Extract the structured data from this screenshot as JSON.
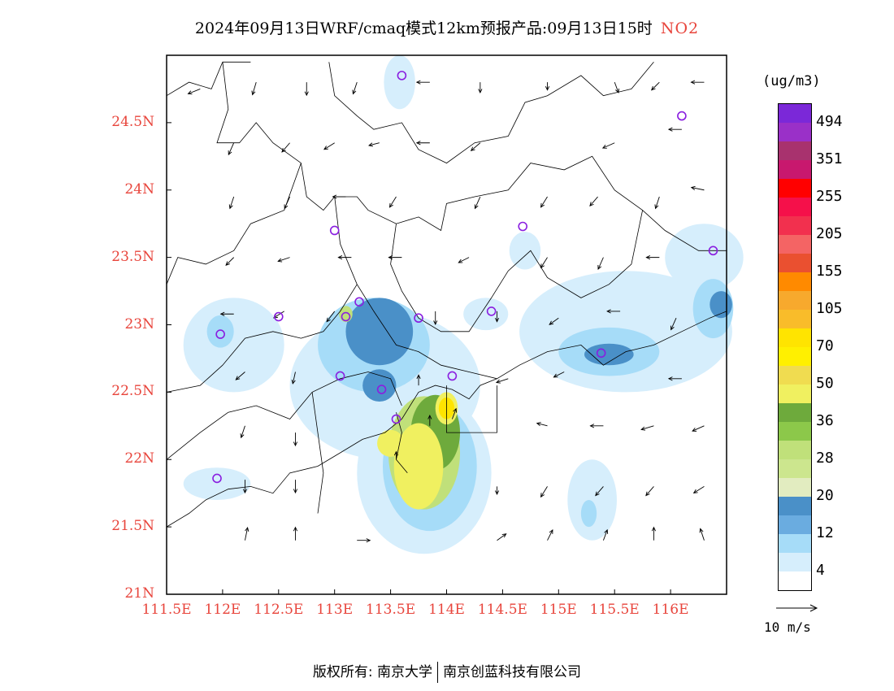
{
  "title": {
    "main": "2024年09月13日WRF/cmaq模式12km预报产品:09月13日15时",
    "species": "NO2",
    "species_color": "#e8453c"
  },
  "axes": {
    "lat_labels": [
      "24.5N",
      "24N",
      "23.5N",
      "23N",
      "22.5N",
      "22N",
      "21.5N",
      "21N"
    ],
    "lat_values": [
      24.5,
      24,
      23.5,
      23,
      22.5,
      22,
      21.5,
      21
    ],
    "lon_labels": [
      "111.5E",
      "112E",
      "112.5E",
      "113E",
      "113.5E",
      "114E",
      "114.5E",
      "115E",
      "115.5E",
      "116E"
    ],
    "lon_values": [
      111.5,
      112,
      112.5,
      113,
      113.5,
      114,
      114.5,
      115,
      115.5,
      116
    ],
    "lon_range": [
      111.5,
      116.5
    ],
    "lat_range": [
      21,
      25
    ],
    "label_color": "#e8453c"
  },
  "legend": {
    "unit": "(ug/m3)",
    "labels": [
      "494",
      "351",
      "255",
      "205",
      "155",
      "105",
      "70",
      "50",
      "36",
      "28",
      "20",
      "12",
      "4"
    ],
    "colors_top_to_bottom": [
      "#7b28d8",
      "#9a30c8",
      "#a8326e",
      "#c8186e",
      "#ff0000",
      "#f5104a",
      "#f2304e",
      "#f46464",
      "#ea5030",
      "#ff8a00",
      "#f7a92d",
      "#f9bc2a",
      "#ffe400",
      "#fff000",
      "#f0dc50",
      "#f0f060",
      "#6eaa3c",
      "#8cc84a",
      "#c0e07a",
      "#cce68e",
      "#e2ecc0",
      "#4a90c8",
      "#6aace0",
      "#a6dcf8",
      "#d6eefc",
      "#ffffff"
    ]
  },
  "wind_reference": {
    "label": "10 m/s"
  },
  "copyright": {
    "left": "版权所有: 南京大学",
    "right": "南京创蓝科技有限公司"
  },
  "stations": [
    {
      "lon": 113.6,
      "lat": 24.85
    },
    {
      "lon": 113.0,
      "lat": 23.7
    },
    {
      "lon": 114.68,
      "lat": 23.73
    },
    {
      "lon": 116.1,
      "lat": 24.55
    },
    {
      "lon": 116.38,
      "lat": 23.55
    },
    {
      "lon": 112.5,
      "lat": 23.06
    },
    {
      "lon": 111.98,
      "lat": 22.93
    },
    {
      "lon": 113.1,
      "lat": 23.06
    },
    {
      "lon": 113.22,
      "lat": 23.17
    },
    {
      "lon": 113.75,
      "lat": 23.05
    },
    {
      "lon": 114.4,
      "lat": 23.1
    },
    {
      "lon": 113.05,
      "lat": 22.62
    },
    {
      "lon": 113.42,
      "lat": 22.52
    },
    {
      "lon": 114.05,
      "lat": 22.62
    },
    {
      "lon": 113.55,
      "lat": 22.3
    },
    {
      "lon": 115.38,
      "lat": 22.79
    },
    {
      "lon": 111.95,
      "lat": 21.86
    }
  ],
  "concentration_fields": [
    {
      "level": "4",
      "color": "#d6eefc",
      "blobs": [
        {
          "lon": 113.45,
          "lat": 22.55,
          "rx": 0.85,
          "ry": 0.55
        },
        {
          "lon": 113.8,
          "lat": 21.9,
          "rx": 0.6,
          "ry": 0.6
        },
        {
          "lon": 112.1,
          "lat": 22.85,
          "rx": 0.45,
          "ry": 0.35
        },
        {
          "lon": 115.6,
          "lat": 22.95,
          "rx": 0.95,
          "ry": 0.45
        },
        {
          "lon": 116.3,
          "lat": 23.5,
          "rx": 0.35,
          "ry": 0.25
        },
        {
          "lon": 115.3,
          "lat": 21.7,
          "rx": 0.22,
          "ry": 0.3
        },
        {
          "lon": 113.58,
          "lat": 24.8,
          "rx": 0.14,
          "ry": 0.2
        },
        {
          "lon": 114.35,
          "lat": 23.08,
          "rx": 0.2,
          "ry": 0.12
        },
        {
          "lon": 114.7,
          "lat": 23.55,
          "rx": 0.14,
          "ry": 0.14
        },
        {
          "lon": 111.95,
          "lat": 21.82,
          "rx": 0.3,
          "ry": 0.12
        }
      ]
    },
    {
      "level": "12",
      "color": "#a6dcf8",
      "blobs": [
        {
          "lon": 113.35,
          "lat": 22.85,
          "rx": 0.5,
          "ry": 0.35
        },
        {
          "lon": 113.85,
          "lat": 21.95,
          "rx": 0.42,
          "ry": 0.48
        },
        {
          "lon": 115.45,
          "lat": 22.8,
          "rx": 0.45,
          "ry": 0.18
        },
        {
          "lon": 116.38,
          "lat": 23.12,
          "rx": 0.18,
          "ry": 0.22
        },
        {
          "lon": 111.98,
          "lat": 22.95,
          "rx": 0.12,
          "ry": 0.12
        },
        {
          "lon": 115.27,
          "lat": 21.6,
          "rx": 0.07,
          "ry": 0.1
        }
      ]
    },
    {
      "level": "20",
      "color": "#4a90c8",
      "blobs": [
        {
          "lon": 113.4,
          "lat": 22.95,
          "rx": 0.3,
          "ry": 0.25
        },
        {
          "lon": 113.4,
          "lat": 22.55,
          "rx": 0.15,
          "ry": 0.12
        },
        {
          "lon": 115.45,
          "lat": 22.78,
          "rx": 0.22,
          "ry": 0.08
        },
        {
          "lon": 116.45,
          "lat": 23.15,
          "rx": 0.1,
          "ry": 0.1
        }
      ]
    },
    {
      "level": "28",
      "color": "#c0e07a",
      "blobs": [
        {
          "lon": 113.8,
          "lat": 22.05,
          "rx": 0.32,
          "ry": 0.42
        },
        {
          "lon": 113.1,
          "lat": 23.08,
          "rx": 0.06,
          "ry": 0.06
        }
      ]
    },
    {
      "level": "36",
      "color": "#6eaa3c",
      "blobs": [
        {
          "lon": 113.9,
          "lat": 22.2,
          "rx": 0.22,
          "ry": 0.28
        }
      ]
    },
    {
      "level": "50",
      "color": "#f0f060",
      "blobs": [
        {
          "lon": 113.75,
          "lat": 21.95,
          "rx": 0.22,
          "ry": 0.32
        },
        {
          "lon": 114.0,
          "lat": 22.38,
          "rx": 0.1,
          "ry": 0.12
        },
        {
          "lon": 113.5,
          "lat": 22.12,
          "rx": 0.12,
          "ry": 0.1
        }
      ]
    },
    {
      "level": "70",
      "color": "#ffe400",
      "blobs": [
        {
          "lon": 114.0,
          "lat": 22.38,
          "rx": 0.07,
          "ry": 0.08
        }
      ]
    }
  ],
  "wind_vectors": [
    {
      "lon": 111.8,
      "lat": 24.75,
      "u": -1.0,
      "v": -0.4
    },
    {
      "lon": 112.3,
      "lat": 24.8,
      "u": -0.3,
      "v": -1.0
    },
    {
      "lon": 112.75,
      "lat": 24.8,
      "u": 0.0,
      "v": -1.0
    },
    {
      "lon": 113.2,
      "lat": 24.8,
      "u": -0.3,
      "v": -0.9
    },
    {
      "lon": 113.85,
      "lat": 24.8,
      "u": -1.0,
      "v": 0.0
    },
    {
      "lon": 114.3,
      "lat": 24.8,
      "u": 0.0,
      "v": -0.8
    },
    {
      "lon": 114.9,
      "lat": 24.8,
      "u": 0.0,
      "v": -0.6
    },
    {
      "lon": 115.5,
      "lat": 24.8,
      "u": 0.3,
      "v": -0.8
    },
    {
      "lon": 115.9,
      "lat": 24.8,
      "u": -0.6,
      "v": -0.6
    },
    {
      "lon": 116.3,
      "lat": 24.8,
      "u": -1.0,
      "v": 0.0
    },
    {
      "lon": 112.1,
      "lat": 24.35,
      "u": -0.4,
      "v": -0.9
    },
    {
      "lon": 112.6,
      "lat": 24.35,
      "u": -0.6,
      "v": -0.7
    },
    {
      "lon": 113.0,
      "lat": 24.35,
      "u": -0.8,
      "v": -0.5
    },
    {
      "lon": 113.4,
      "lat": 24.35,
      "u": -0.8,
      "v": -0.2
    },
    {
      "lon": 113.85,
      "lat": 24.35,
      "u": -1.0,
      "v": 0.0
    },
    {
      "lon": 114.3,
      "lat": 24.35,
      "u": -0.7,
      "v": -0.6
    },
    {
      "lon": 115.5,
      "lat": 24.35,
      "u": -0.9,
      "v": -0.4
    },
    {
      "lon": 116.1,
      "lat": 24.45,
      "u": -1.0,
      "v": 0.0
    },
    {
      "lon": 112.1,
      "lat": 23.95,
      "u": -0.3,
      "v": -0.9
    },
    {
      "lon": 112.6,
      "lat": 23.95,
      "u": -0.4,
      "v": -0.9
    },
    {
      "lon": 113.1,
      "lat": 23.95,
      "u": -1.0,
      "v": 0.0
    },
    {
      "lon": 113.55,
      "lat": 23.95,
      "u": -0.5,
      "v": -0.8
    },
    {
      "lon": 114.3,
      "lat": 23.95,
      "u": -0.4,
      "v": -0.9
    },
    {
      "lon": 114.9,
      "lat": 23.95,
      "u": -0.5,
      "v": -0.8
    },
    {
      "lon": 115.35,
      "lat": 23.95,
      "u": -0.6,
      "v": -0.7
    },
    {
      "lon": 115.9,
      "lat": 23.95,
      "u": -0.3,
      "v": -0.9
    },
    {
      "lon": 116.3,
      "lat": 24.0,
      "u": -1.0,
      "v": 0.2
    },
    {
      "lon": 112.1,
      "lat": 23.5,
      "u": -0.6,
      "v": -0.6
    },
    {
      "lon": 112.6,
      "lat": 23.5,
      "u": -0.9,
      "v": -0.3
    },
    {
      "lon": 113.15,
      "lat": 23.5,
      "u": -1.0,
      "v": 0.0
    },
    {
      "lon": 113.6,
      "lat": 23.5,
      "u": -1.0,
      "v": 0.0
    },
    {
      "lon": 114.2,
      "lat": 23.5,
      "u": -0.8,
      "v": -0.4
    },
    {
      "lon": 114.9,
      "lat": 23.5,
      "u": -0.5,
      "v": -0.8
    },
    {
      "lon": 115.4,
      "lat": 23.5,
      "u": -0.4,
      "v": -0.9
    },
    {
      "lon": 115.9,
      "lat": 23.5,
      "u": -1.0,
      "v": 0.0
    },
    {
      "lon": 112.1,
      "lat": 23.08,
      "u": -1.0,
      "v": 0.0
    },
    {
      "lon": 112.55,
      "lat": 23.1,
      "u": -0.8,
      "v": -0.5
    },
    {
      "lon": 113.0,
      "lat": 23.1,
      "u": -0.6,
      "v": -0.8
    },
    {
      "lon": 113.9,
      "lat": 23.1,
      "u": 0.0,
      "v": -1.0
    },
    {
      "lon": 114.45,
      "lat": 23.1,
      "u": 0.0,
      "v": -0.8
    },
    {
      "lon": 115.0,
      "lat": 23.05,
      "u": -0.7,
      "v": -0.5
    },
    {
      "lon": 115.55,
      "lat": 23.1,
      "u": -1.0,
      "v": 0.0
    },
    {
      "lon": 116.05,
      "lat": 23.05,
      "u": -0.4,
      "v": -0.9
    },
    {
      "lon": 112.2,
      "lat": 22.65,
      "u": -0.7,
      "v": -0.6
    },
    {
      "lon": 112.65,
      "lat": 22.65,
      "u": -0.2,
      "v": -0.9
    },
    {
      "lon": 114.55,
      "lat": 22.6,
      "u": -0.9,
      "v": -0.3
    },
    {
      "lon": 115.05,
      "lat": 22.65,
      "u": -0.8,
      "v": -0.4
    },
    {
      "lon": 116.1,
      "lat": 22.6,
      "u": -1.0,
      "v": 0.0
    },
    {
      "lon": 112.2,
      "lat": 22.25,
      "u": -0.3,
      "v": -0.9
    },
    {
      "lon": 112.65,
      "lat": 22.2,
      "u": 0.0,
      "v": -1.0
    },
    {
      "lon": 114.9,
      "lat": 22.25,
      "u": -0.8,
      "v": 0.2
    },
    {
      "lon": 115.4,
      "lat": 22.25,
      "u": -1.0,
      "v": 0.0
    },
    {
      "lon": 115.85,
      "lat": 22.25,
      "u": -1.0,
      "v": -0.3
    },
    {
      "lon": 116.3,
      "lat": 22.25,
      "u": -0.9,
      "v": -0.4
    },
    {
      "lon": 112.2,
      "lat": 21.85,
      "u": 0.0,
      "v": -1.0
    },
    {
      "lon": 112.65,
      "lat": 21.85,
      "u": 0.0,
      "v": -1.0
    },
    {
      "lon": 114.45,
      "lat": 21.8,
      "u": 0.0,
      "v": -0.6
    },
    {
      "lon": 114.9,
      "lat": 21.8,
      "u": -0.5,
      "v": -0.8
    },
    {
      "lon": 115.4,
      "lat": 21.8,
      "u": -0.6,
      "v": -0.7
    },
    {
      "lon": 115.85,
      "lat": 21.8,
      "u": -0.6,
      "v": -0.7
    },
    {
      "lon": 116.3,
      "lat": 21.8,
      "u": -0.8,
      "v": -0.5
    },
    {
      "lon": 112.2,
      "lat": 21.4,
      "u": 0.2,
      "v": 1.0
    },
    {
      "lon": 112.65,
      "lat": 21.4,
      "u": 0.0,
      "v": 1.0
    },
    {
      "lon": 113.2,
      "lat": 21.4,
      "u": 1.0,
      "v": 0.0
    },
    {
      "lon": 114.45,
      "lat": 21.4,
      "u": 0.7,
      "v": 0.5
    },
    {
      "lon": 114.9,
      "lat": 21.4,
      "u": 0.4,
      "v": 0.8
    },
    {
      "lon": 115.4,
      "lat": 21.4,
      "u": 0.3,
      "v": 0.8
    },
    {
      "lon": 115.85,
      "lat": 21.4,
      "u": 0.0,
      "v": 1.0
    },
    {
      "lon": 116.3,
      "lat": 21.4,
      "u": -0.3,
      "v": 0.9
    },
    {
      "lon": 113.55,
      "lat": 22.0,
      "u": 0.0,
      "v": 0.6
    },
    {
      "lon": 113.75,
      "lat": 22.55,
      "u": 0.0,
      "v": 0.8
    },
    {
      "lon": 114.05,
      "lat": 22.3,
      "u": 0.3,
      "v": 0.8
    },
    {
      "lon": 113.85,
      "lat": 22.25,
      "u": 0.0,
      "v": 0.8
    }
  ],
  "boundaries": [
    [
      [
        111.5,
        24.7
      ],
      [
        111.7,
        24.8
      ],
      [
        111.9,
        24.75
      ],
      [
        112.0,
        24.95
      ],
      [
        112.25,
        24.95
      ]
    ],
    [
      [
        112.0,
        24.95
      ],
      [
        112.05,
        24.6
      ],
      [
        111.95,
        24.35
      ],
      [
        112.15,
        24.35
      ],
      [
        112.3,
        24.5
      ],
      [
        112.45,
        24.35
      ],
      [
        112.7,
        24.2
      ],
      [
        112.75,
        23.95
      ],
      [
        112.9,
        23.85
      ],
      [
        113.0,
        23.95
      ],
      [
        113.2,
        23.95
      ],
      [
        113.3,
        23.85
      ],
      [
        113.55,
        23.75
      ],
      [
        113.75,
        23.8
      ],
      [
        113.95,
        23.7
      ],
      [
        114.0,
        23.9
      ],
      [
        114.25,
        23.95
      ],
      [
        114.55,
        24.0
      ],
      [
        114.75,
        24.2
      ],
      [
        115.05,
        24.15
      ],
      [
        115.3,
        24.25
      ],
      [
        115.5,
        24.0
      ],
      [
        115.75,
        23.85
      ],
      [
        115.95,
        23.7
      ],
      [
        116.25,
        23.55
      ],
      [
        116.5,
        23.55
      ]
    ],
    [
      [
        112.95,
        24.95
      ],
      [
        113.0,
        24.7
      ],
      [
        113.2,
        24.55
      ],
      [
        113.35,
        24.45
      ],
      [
        113.6,
        24.5
      ],
      [
        113.75,
        24.3
      ],
      [
        114.0,
        24.2
      ],
      [
        114.25,
        24.35
      ],
      [
        114.55,
        24.4
      ],
      [
        114.7,
        24.65
      ],
      [
        114.9,
        24.7
      ],
      [
        115.2,
        24.85
      ],
      [
        115.4,
        24.7
      ],
      [
        115.65,
        24.75
      ],
      [
        115.85,
        24.95
      ]
    ],
    [
      [
        112.7,
        24.2
      ],
      [
        112.55,
        23.85
      ],
      [
        112.25,
        23.75
      ],
      [
        112.1,
        23.55
      ],
      [
        111.85,
        23.45
      ],
      [
        111.6,
        23.5
      ],
      [
        111.5,
        23.3
      ]
    ],
    [
      [
        113.0,
        23.95
      ],
      [
        113.05,
        23.6
      ],
      [
        113.2,
        23.3
      ],
      [
        113.35,
        23.1
      ],
      [
        113.55,
        22.85
      ],
      [
        113.75,
        22.8
      ],
      [
        113.95,
        22.7
      ],
      [
        114.2,
        22.65
      ],
      [
        114.45,
        22.6
      ],
      [
        114.65,
        22.7
      ],
      [
        114.9,
        22.8
      ],
      [
        115.2,
        22.85
      ],
      [
        115.4,
        22.7
      ],
      [
        115.6,
        22.8
      ],
      [
        115.85,
        22.85
      ],
      [
        116.1,
        22.95
      ],
      [
        116.35,
        23.05
      ],
      [
        116.5,
        23.1
      ]
    ],
    [
      [
        113.55,
        23.75
      ],
      [
        113.5,
        23.45
      ],
      [
        113.6,
        23.25
      ],
      [
        113.75,
        23.05
      ],
      [
        113.95,
        22.95
      ],
      [
        114.2,
        22.95
      ],
      [
        114.4,
        23.2
      ],
      [
        114.55,
        23.4
      ],
      [
        114.75,
        23.55
      ],
      [
        114.9,
        23.35
      ],
      [
        115.2,
        23.2
      ],
      [
        115.45,
        23.3
      ],
      [
        115.65,
        23.45
      ],
      [
        115.75,
        23.85
      ]
    ],
    [
      [
        111.5,
        22.5
      ],
      [
        111.8,
        22.55
      ],
      [
        112.0,
        22.7
      ],
      [
        112.2,
        22.9
      ],
      [
        112.45,
        22.95
      ],
      [
        112.7,
        22.9
      ],
      [
        112.9,
        22.95
      ],
      [
        113.05,
        23.1
      ],
      [
        113.2,
        23.3
      ]
    ],
    [
      [
        111.5,
        22.0
      ],
      [
        111.8,
        22.2
      ],
      [
        112.05,
        22.35
      ],
      [
        112.3,
        22.4
      ],
      [
        112.6,
        22.3
      ],
      [
        112.8,
        22.5
      ],
      [
        113.05,
        22.6
      ],
      [
        113.3,
        22.65
      ],
      [
        113.5,
        22.6
      ],
      [
        113.6,
        22.4
      ]
    ],
    [
      [
        111.5,
        21.5
      ],
      [
        111.7,
        21.6
      ],
      [
        111.85,
        21.7
      ],
      [
        112.05,
        21.78
      ],
      [
        112.25,
        21.8
      ],
      [
        112.45,
        21.75
      ],
      [
        112.6,
        21.9
      ],
      [
        112.85,
        21.95
      ],
      [
        113.05,
        22.05
      ],
      [
        113.25,
        22.15
      ],
      [
        113.45,
        22.2
      ],
      [
        113.6,
        22.3
      ],
      [
        113.75,
        22.5
      ],
      [
        113.9,
        22.55
      ],
      [
        114.05,
        22.52
      ],
      [
        114.2,
        22.45
      ],
      [
        114.3,
        22.55
      ],
      [
        114.45,
        22.6
      ]
    ],
    [
      [
        112.8,
        22.5
      ],
      [
        112.85,
        22.2
      ],
      [
        112.9,
        21.9
      ],
      [
        112.85,
        21.6
      ]
    ],
    [
      [
        114.0,
        22.55
      ],
      [
        114.0,
        22.2
      ],
      [
        114.45,
        22.2
      ],
      [
        114.45,
        22.55
      ]
    ],
    [
      [
        113.55,
        22.35
      ],
      [
        113.6,
        22.2
      ],
      [
        113.55,
        22.0
      ],
      [
        113.65,
        21.9
      ]
    ]
  ]
}
